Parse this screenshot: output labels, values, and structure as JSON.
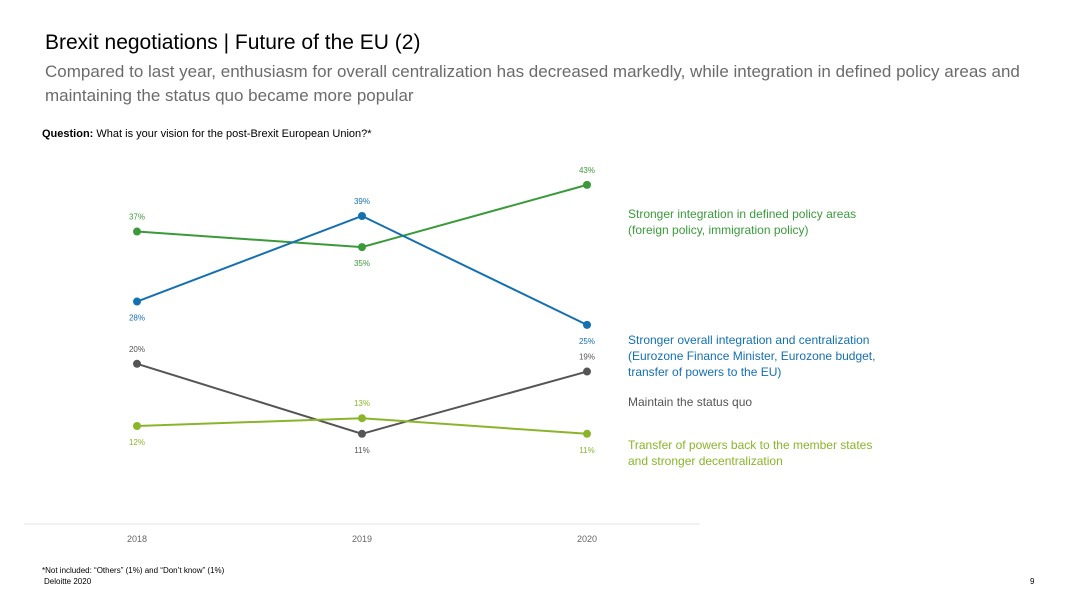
{
  "header": {
    "title": "Brexit negotiations | Future of the EU (2)",
    "subtitle": "Compared to last year, enthusiasm for overall centralization has decreased markedly, while integration in defined policy areas and maintaining the status quo became more popular"
  },
  "question": {
    "label": "Question:",
    "text": "What is your vision for the post-Brexit European Union?*"
  },
  "chart_data": {
    "type": "line",
    "x": [
      "2018",
      "2019",
      "2020"
    ],
    "ylim": [
      0,
      50
    ],
    "grid": false,
    "series": [
      {
        "name": "Stronger integration in defined policy areas (foreign policy, immigration policy)",
        "legend_lines": [
          "Stronger integration in defined policy areas",
          "(foreign policy, immigration policy)"
        ],
        "values": [
          37,
          35,
          43
        ],
        "labels": [
          "37%",
          "35%",
          "43%"
        ],
        "label_pos": [
          "above",
          "below",
          "above"
        ],
        "color": "#3a9a3a"
      },
      {
        "name": "Stronger overall integration and centralization (Eurozone Finance Minister, Eurozone budget, transfer of powers to the EU)",
        "legend_lines": [
          "Stronger overall integration and centralization",
          "(Eurozone Finance Minister, Eurozone budget,",
          "transfer of powers to the EU)"
        ],
        "values": [
          28,
          39,
          25
        ],
        "labels": [
          "28%",
          "39%",
          "25%"
        ],
        "label_pos": [
          "below",
          "above",
          "below"
        ],
        "color": "#1470b0"
      },
      {
        "name": "Maintain the status quo",
        "legend_lines": [
          "Maintain the status quo"
        ],
        "values": [
          20,
          11,
          19
        ],
        "labels": [
          "20%",
          "11%",
          "19%"
        ],
        "label_pos": [
          "above",
          "below",
          "above"
        ],
        "color": "#555555"
      },
      {
        "name": "Transfer of powers back to the member states and stronger decentralization",
        "legend_lines": [
          "Transfer of powers back to the member states",
          "and stronger decentralization"
        ],
        "values": [
          12,
          13,
          11
        ],
        "labels": [
          "12%",
          "13%",
          "11%"
        ],
        "label_pos": [
          "below",
          "above",
          "below"
        ],
        "color": "#8ab52a"
      }
    ]
  },
  "footnote": "*Not included: “Others” (1%) and “Don’t know” (1%)",
  "source": "Deloitte 2020",
  "page_number": "9"
}
